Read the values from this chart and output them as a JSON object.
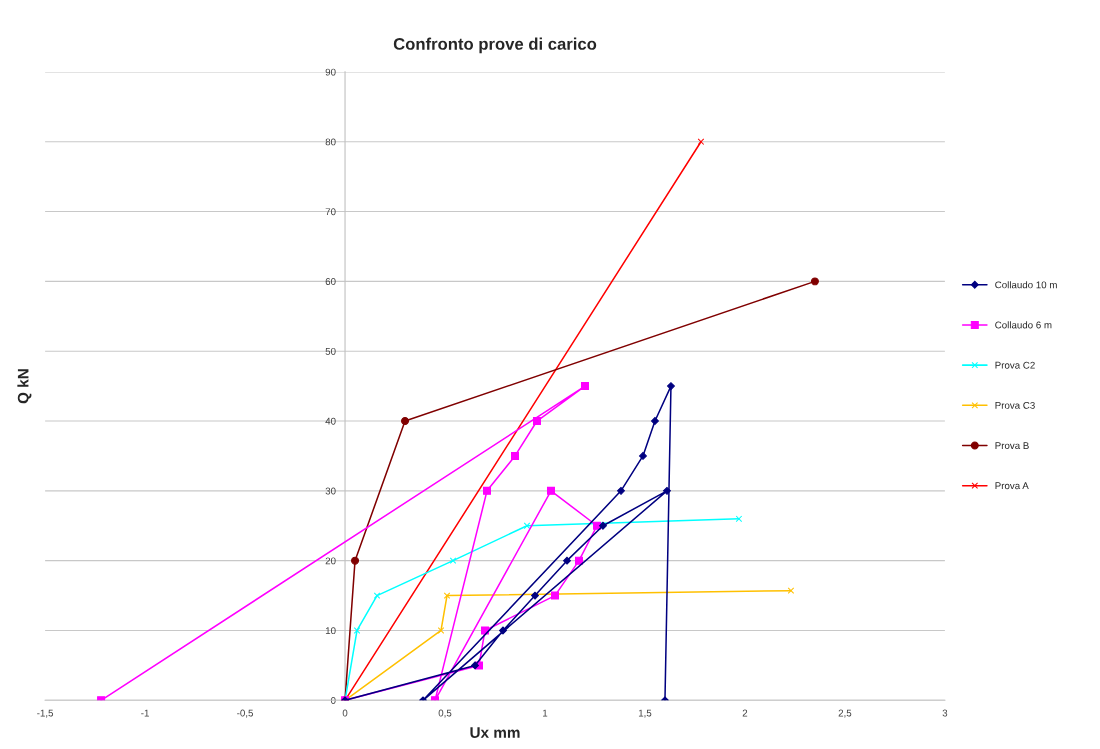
{
  "chart_data": {
    "type": "line",
    "title": "Confronto prove di carico",
    "xlabel": "Ux mm",
    "ylabel": "Q kN",
    "xlim": [
      -1.5,
      3
    ],
    "ylim": [
      0,
      90
    ],
    "xticks": [
      {
        "value": -1.5,
        "label": "-1,5"
      },
      -1,
      {
        "value": -0.5,
        "label": "-0,5"
      },
      0,
      {
        "value": 0.5,
        "label": "0,5"
      },
      1,
      {
        "value": 1.5,
        "label": "1,5"
      },
      2,
      {
        "value": 2.5,
        "label": "2,5"
      },
      3
    ],
    "yticks": [
      0,
      10,
      20,
      30,
      40,
      50,
      60,
      70,
      80,
      90
    ],
    "grid": "y",
    "legend": "right",
    "series": [
      {
        "name": "Collaudo 10 m",
        "color": "#000080",
        "marker": "diamond",
        "x": [
          0,
          0.65,
          0.79,
          0.95,
          1.11,
          1.29,
          1.61,
          0.39,
          1.38,
          1.49,
          1.55,
          1.63,
          1.6
        ],
        "values": [
          0,
          5,
          10,
          15,
          20,
          25,
          30,
          0,
          30,
          35,
          40,
          45,
          0
        ]
      },
      {
        "name": "Collaudo 6 m",
        "color": "#ff00ff",
        "marker": "square",
        "x": [
          0,
          0.67,
          0.7,
          1.05,
          1.17,
          1.26,
          1.03,
          0.45,
          0.71,
          0.85,
          0.96,
          1.2,
          -1.22
        ],
        "values": [
          0,
          5,
          10,
          15,
          20,
          25,
          30,
          0,
          30,
          35,
          40,
          45,
          0
        ]
      },
      {
        "name": "Prova C2",
        "color": "#00ffff",
        "marker": "cross",
        "x": [
          0,
          0.06,
          0.16,
          0.54,
          0.91,
          1.97
        ],
        "values": [
          0,
          10,
          15,
          20,
          25,
          26
        ]
      },
      {
        "name": "Prova C3",
        "color": "#ffc000",
        "marker": "cross",
        "x": [
          0,
          0.48,
          0.51,
          2.23
        ],
        "values": [
          0,
          10,
          15,
          15.7
        ]
      },
      {
        "name": "Prova B",
        "color": "#800000",
        "marker": "circle",
        "x": [
          0,
          0.05,
          0.3,
          2.35
        ],
        "values": [
          0,
          20,
          40,
          60
        ]
      },
      {
        "name": "Prova A",
        "color": "#ff0000",
        "marker": "cross",
        "x": [
          0,
          1.78
        ],
        "values": [
          0,
          80
        ]
      }
    ]
  }
}
